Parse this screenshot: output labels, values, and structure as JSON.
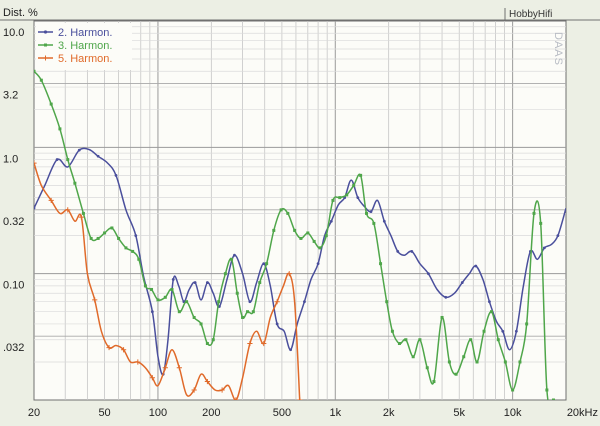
{
  "header": {
    "title": "Dist. %",
    "brand": "HobbyHifi",
    "watermark": "DAAS"
  },
  "chart_data": {
    "type": "line",
    "title": "Dist. %",
    "xlabel": "",
    "ylabel": "Dist. %",
    "x_scale": "log",
    "y_scale": "log",
    "xlim": [
      20,
      20000
    ],
    "ylim": [
      0.01,
      10
    ],
    "grid": true,
    "legend_position": "top-left",
    "x_ticks": [
      {
        "value": 20,
        "label": "20"
      },
      {
        "value": 50,
        "label": "50"
      },
      {
        "value": 100,
        "label": "100"
      },
      {
        "value": 200,
        "label": "200"
      },
      {
        "value": 500,
        "label": "500"
      },
      {
        "value": 1000,
        "label": "1k"
      },
      {
        "value": 2000,
        "label": "2k"
      },
      {
        "value": 5000,
        "label": "5k"
      },
      {
        "value": 10000,
        "label": "10k"
      },
      {
        "value": 20000,
        "label": "20kHz"
      }
    ],
    "y_ticks": [
      {
        "value": 10,
        "label": "10.0"
      },
      {
        "value": 3.2,
        "label": "3.2"
      },
      {
        "value": 1.0,
        "label": "1.0"
      },
      {
        "value": 0.32,
        "label": "0.32"
      },
      {
        "value": 0.1,
        "label": "0.10"
      },
      {
        "value": 0.032,
        "label": ".032"
      }
    ],
    "series": [
      {
        "name": "2. Harmon.",
        "color": "#4a4f9c",
        "points": [
          [
            20,
            0.33
          ],
          [
            23,
            0.5
          ],
          [
            27,
            0.8
          ],
          [
            31,
            0.7
          ],
          [
            36,
            0.95
          ],
          [
            41,
            0.96
          ],
          [
            46,
            0.85
          ],
          [
            52,
            0.75
          ],
          [
            58,
            0.6
          ],
          [
            66,
            0.32
          ],
          [
            75,
            0.2
          ],
          [
            83,
            0.095
          ],
          [
            93,
            0.05
          ],
          [
            100,
            0.022
          ],
          [
            107,
            0.016
          ],
          [
            114,
            0.03
          ],
          [
            122,
            0.09
          ],
          [
            131,
            0.08
          ],
          [
            140,
            0.06
          ],
          [
            150,
            0.075
          ],
          [
            162,
            0.085
          ],
          [
            175,
            0.062
          ],
          [
            190,
            0.085
          ],
          [
            205,
            0.07
          ],
          [
            222,
            0.055
          ],
          [
            245,
            0.09
          ],
          [
            270,
            0.14
          ],
          [
            300,
            0.1
          ],
          [
            330,
            0.06
          ],
          [
            360,
            0.085
          ],
          [
            395,
            0.12
          ],
          [
            430,
            0.08
          ],
          [
            470,
            0.04
          ],
          [
            515,
            0.035
          ],
          [
            560,
            0.025
          ],
          [
            610,
            0.04
          ],
          [
            670,
            0.06
          ],
          [
            730,
            0.09
          ],
          [
            800,
            0.12
          ],
          [
            870,
            0.2
          ],
          [
            950,
            0.26
          ],
          [
            1040,
            0.35
          ],
          [
            1130,
            0.4
          ],
          [
            1230,
            0.55
          ],
          [
            1340,
            0.4
          ],
          [
            1460,
            0.34
          ],
          [
            1590,
            0.31
          ],
          [
            1730,
            0.38
          ],
          [
            1890,
            0.26
          ],
          [
            2060,
            0.2
          ],
          [
            2250,
            0.15
          ],
          [
            2450,
            0.14
          ],
          [
            2700,
            0.15
          ],
          [
            3000,
            0.12
          ],
          [
            3350,
            0.1
          ],
          [
            3750,
            0.075
          ],
          [
            4200,
            0.065
          ],
          [
            4700,
            0.07
          ],
          [
            5200,
            0.085
          ],
          [
            5700,
            0.1
          ],
          [
            6200,
            0.115
          ],
          [
            6800,
            0.09
          ],
          [
            7400,
            0.06
          ],
          [
            8100,
            0.042
          ],
          [
            8800,
            0.035
          ],
          [
            9600,
            0.025
          ],
          [
            10500,
            0.035
          ],
          [
            11500,
            0.08
          ],
          [
            12600,
            0.15
          ],
          [
            13800,
            0.13
          ],
          [
            15100,
            0.16
          ],
          [
            16500,
            0.17
          ],
          [
            18000,
            0.2
          ],
          [
            20000,
            0.33
          ]
        ]
      },
      {
        "name": "3. Harmon.",
        "color": "#4fa64a",
        "points": [
          [
            20,
            4.0
          ],
          [
            22,
            3.4
          ],
          [
            25,
            2.2
          ],
          [
            28,
            1.4
          ],
          [
            31,
            0.8
          ],
          [
            34,
            0.52
          ],
          [
            38,
            0.3
          ],
          [
            42,
            0.19
          ],
          [
            46,
            0.19
          ],
          [
            50,
            0.21
          ],
          [
            55,
            0.23
          ],
          [
            60,
            0.19
          ],
          [
            66,
            0.16
          ],
          [
            72,
            0.15
          ],
          [
            78,
            0.13
          ],
          [
            85,
            0.08
          ],
          [
            92,
            0.075
          ],
          [
            100,
            0.062
          ],
          [
            110,
            0.065
          ],
          [
            120,
            0.075
          ],
          [
            132,
            0.05
          ],
          [
            145,
            0.06
          ],
          [
            160,
            0.045
          ],
          [
            175,
            0.04
          ],
          [
            190,
            0.028
          ],
          [
            205,
            0.03
          ],
          [
            220,
            0.06
          ],
          [
            240,
            0.1
          ],
          [
            260,
            0.13
          ],
          [
            280,
            0.07
          ],
          [
            300,
            0.045
          ],
          [
            320,
            0.05
          ],
          [
            345,
            0.05
          ],
          [
            375,
            0.085
          ],
          [
            410,
            0.12
          ],
          [
            450,
            0.22
          ],
          [
            495,
            0.32
          ],
          [
            540,
            0.3
          ],
          [
            590,
            0.22
          ],
          [
            640,
            0.19
          ],
          [
            700,
            0.21
          ],
          [
            760,
            0.18
          ],
          [
            820,
            0.16
          ],
          [
            890,
            0.2
          ],
          [
            970,
            0.38
          ],
          [
            1060,
            0.4
          ],
          [
            1160,
            0.42
          ],
          [
            1270,
            0.5
          ],
          [
            1390,
            0.6
          ],
          [
            1500,
            0.3
          ],
          [
            1650,
            0.25
          ],
          [
            1800,
            0.12
          ],
          [
            1950,
            0.06
          ],
          [
            2100,
            0.035
          ],
          [
            2300,
            0.028
          ],
          [
            2500,
            0.03
          ],
          [
            2750,
            0.022
          ],
          [
            3000,
            0.03
          ],
          [
            3300,
            0.018
          ],
          [
            3600,
            0.014
          ],
          [
            4000,
            0.045
          ],
          [
            4400,
            0.02
          ],
          [
            4800,
            0.016
          ],
          [
            5300,
            0.022
          ],
          [
            5800,
            0.03
          ],
          [
            6300,
            0.02
          ],
          [
            6900,
            0.035
          ],
          [
            7600,
            0.05
          ],
          [
            8300,
            0.03
          ],
          [
            9100,
            0.02
          ],
          [
            10000,
            0.012
          ],
          [
            11000,
            0.02
          ],
          [
            12000,
            0.04
          ],
          [
            13200,
            0.3
          ],
          [
            14400,
            0.25
          ],
          [
            15600,
            0.012
          ],
          [
            17000,
            0.01
          ]
        ]
      },
      {
        "name": "5. Harmon.",
        "color": "#e06a2a",
        "points": [
          [
            20,
            0.75
          ],
          [
            22,
            0.5
          ],
          [
            25,
            0.38
          ],
          [
            28,
            0.3
          ],
          [
            31,
            0.32
          ],
          [
            34,
            0.26
          ],
          [
            37,
            0.28
          ],
          [
            40,
            0.1
          ],
          [
            44,
            0.062
          ],
          [
            48,
            0.035
          ],
          [
            53,
            0.026
          ],
          [
            58,
            0.027
          ],
          [
            64,
            0.025
          ],
          [
            70,
            0.02
          ],
          [
            77,
            0.02
          ],
          [
            85,
            0.018
          ],
          [
            93,
            0.015
          ],
          [
            100,
            0.013
          ],
          [
            110,
            0.018
          ],
          [
            120,
            0.025
          ],
          [
            132,
            0.018
          ],
          [
            145,
            0.011
          ],
          [
            160,
            0.012
          ],
          [
            175,
            0.016
          ],
          [
            190,
            0.014
          ],
          [
            210,
            0.012
          ],
          [
            230,
            0.012
          ],
          [
            250,
            0.013
          ],
          [
            275,
            0.01
          ],
          [
            300,
            0.015
          ],
          [
            330,
            0.028
          ],
          [
            360,
            0.035
          ],
          [
            395,
            0.028
          ],
          [
            430,
            0.045
          ],
          [
            470,
            0.06
          ],
          [
            510,
            0.08
          ],
          [
            550,
            0.1
          ],
          [
            590,
            0.06
          ],
          [
            630,
            0.01
          ]
        ]
      }
    ]
  }
}
